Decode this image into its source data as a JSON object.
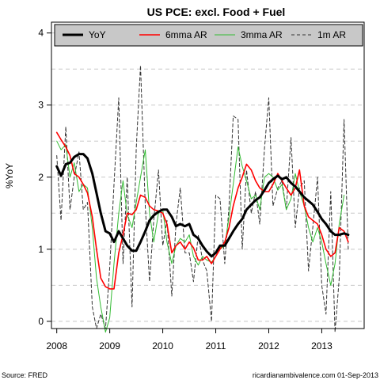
{
  "chart_data": {
    "type": "line",
    "title": "US PCE: excl. Food + Fuel",
    "ylabel": "%YoY",
    "xlabel": "",
    "ylim": [
      -0.1,
      4.15
    ],
    "xlim": [
      2007.9,
      2013.8
    ],
    "yticks": [
      "0",
      "1",
      "2",
      "3",
      "4"
    ],
    "xticks": [
      "2008",
      "2009",
      "2010",
      "2011",
      "2012",
      "2013"
    ],
    "grid": "horizontal dashed at 0.5 steps",
    "legend_position": "top",
    "series": [
      {
        "name": "YoY",
        "color": "#000000",
        "style": "solid-thick",
        "points": [
          [
            2008.0,
            2.15
          ],
          [
            2008.08,
            2.02
          ],
          [
            2008.17,
            2.18
          ],
          [
            2008.25,
            2.2
          ],
          [
            2008.33,
            2.28
          ],
          [
            2008.42,
            2.32
          ],
          [
            2008.5,
            2.32
          ],
          [
            2008.58,
            2.26
          ],
          [
            2008.67,
            2.05
          ],
          [
            2008.75,
            1.78
          ],
          [
            2008.83,
            1.5
          ],
          [
            2008.92,
            1.25
          ],
          [
            2009.0,
            1.22
          ],
          [
            2009.08,
            1.1
          ],
          [
            2009.17,
            1.25
          ],
          [
            2009.25,
            1.15
          ],
          [
            2009.33,
            1.05
          ],
          [
            2009.42,
            0.98
          ],
          [
            2009.5,
            0.98
          ],
          [
            2009.58,
            1.1
          ],
          [
            2009.67,
            1.25
          ],
          [
            2009.75,
            1.4
          ],
          [
            2009.83,
            1.47
          ],
          [
            2009.92,
            1.52
          ],
          [
            2010.0,
            1.55
          ],
          [
            2010.08,
            1.55
          ],
          [
            2010.17,
            1.45
          ],
          [
            2010.25,
            1.32
          ],
          [
            2010.33,
            1.35
          ],
          [
            2010.42,
            1.32
          ],
          [
            2010.5,
            1.35
          ],
          [
            2010.58,
            1.2
          ],
          [
            2010.67,
            1.15
          ],
          [
            2010.75,
            1.05
          ],
          [
            2010.83,
            0.97
          ],
          [
            2010.92,
            0.9
          ],
          [
            2011.0,
            0.95
          ],
          [
            2011.08,
            1.05
          ],
          [
            2011.17,
            1.05
          ],
          [
            2011.25,
            1.15
          ],
          [
            2011.33,
            1.25
          ],
          [
            2011.42,
            1.35
          ],
          [
            2011.5,
            1.42
          ],
          [
            2011.58,
            1.55
          ],
          [
            2011.67,
            1.62
          ],
          [
            2011.75,
            1.68
          ],
          [
            2011.83,
            1.72
          ],
          [
            2011.92,
            1.82
          ],
          [
            2012.0,
            1.92
          ],
          [
            2012.08,
            1.97
          ],
          [
            2012.17,
            2.02
          ],
          [
            2012.25,
            1.97
          ],
          [
            2012.33,
            2.0
          ],
          [
            2012.42,
            1.92
          ],
          [
            2012.5,
            1.87
          ],
          [
            2012.58,
            1.8
          ],
          [
            2012.67,
            1.72
          ],
          [
            2012.75,
            1.67
          ],
          [
            2012.83,
            1.62
          ],
          [
            2012.92,
            1.52
          ],
          [
            2013.0,
            1.42
          ],
          [
            2013.08,
            1.35
          ],
          [
            2013.17,
            1.25
          ],
          [
            2013.25,
            1.2
          ],
          [
            2013.33,
            1.2
          ],
          [
            2013.42,
            1.22
          ],
          [
            2013.5,
            1.2
          ]
        ]
      },
      {
        "name": "6mma AR",
        "color": "#ff0000",
        "style": "solid",
        "points": [
          [
            2008.0,
            2.62
          ],
          [
            2008.08,
            2.52
          ],
          [
            2008.17,
            2.42
          ],
          [
            2008.25,
            2.3
          ],
          [
            2008.33,
            2.05
          ],
          [
            2008.42,
            2.0
          ],
          [
            2008.5,
            1.9
          ],
          [
            2008.58,
            1.78
          ],
          [
            2008.67,
            1.45
          ],
          [
            2008.75,
            1.0
          ],
          [
            2008.83,
            0.6
          ],
          [
            2008.92,
            0.48
          ],
          [
            2009.0,
            0.45
          ],
          [
            2009.08,
            0.45
          ],
          [
            2009.17,
            0.95
          ],
          [
            2009.25,
            1.2
          ],
          [
            2009.33,
            1.5
          ],
          [
            2009.42,
            1.48
          ],
          [
            2009.5,
            1.55
          ],
          [
            2009.58,
            1.75
          ],
          [
            2009.67,
            1.72
          ],
          [
            2009.75,
            1.6
          ],
          [
            2009.83,
            1.55
          ],
          [
            2009.92,
            1.53
          ],
          [
            2010.0,
            1.5
          ],
          [
            2010.08,
            1.35
          ],
          [
            2010.17,
            0.95
          ],
          [
            2010.25,
            1.05
          ],
          [
            2010.33,
            1.1
          ],
          [
            2010.42,
            1.0
          ],
          [
            2010.5,
            1.1
          ],
          [
            2010.58,
            1.02
          ],
          [
            2010.67,
            0.85
          ],
          [
            2010.75,
            0.85
          ],
          [
            2010.83,
            0.9
          ],
          [
            2010.92,
            0.8
          ],
          [
            2011.0,
            0.9
          ],
          [
            2011.08,
            1.0
          ],
          [
            2011.17,
            1.1
          ],
          [
            2011.25,
            1.3
          ],
          [
            2011.33,
            1.6
          ],
          [
            2011.42,
            1.85
          ],
          [
            2011.5,
            2.0
          ],
          [
            2011.58,
            2.18
          ],
          [
            2011.67,
            2.1
          ],
          [
            2011.75,
            1.95
          ],
          [
            2011.83,
            1.85
          ],
          [
            2011.92,
            1.8
          ],
          [
            2012.0,
            1.8
          ],
          [
            2012.08,
            1.9
          ],
          [
            2012.17,
            2.05
          ],
          [
            2012.25,
            1.95
          ],
          [
            2012.33,
            1.85
          ],
          [
            2012.42,
            1.75
          ],
          [
            2012.5,
            1.85
          ],
          [
            2012.58,
            2.1
          ],
          [
            2012.67,
            1.6
          ],
          [
            2012.75,
            1.45
          ],
          [
            2012.83,
            1.4
          ],
          [
            2012.92,
            1.35
          ],
          [
            2013.0,
            1.2
          ],
          [
            2013.08,
            1.0
          ],
          [
            2013.17,
            0.9
          ],
          [
            2013.25,
            0.95
          ],
          [
            2013.33,
            1.3
          ],
          [
            2013.42,
            1.25
          ],
          [
            2013.5,
            1.1
          ]
        ]
      },
      {
        "name": "3mma AR",
        "color": "#33bb33",
        "style": "solid-thin",
        "points": [
          [
            2008.0,
            2.5
          ],
          [
            2008.08,
            2.38
          ],
          [
            2008.17,
            2.45
          ],
          [
            2008.25,
            2.0
          ],
          [
            2008.33,
            2.2
          ],
          [
            2008.42,
            1.8
          ],
          [
            2008.5,
            1.9
          ],
          [
            2008.58,
            1.85
          ],
          [
            2008.67,
            1.3
          ],
          [
            2008.75,
            0.6
          ],
          [
            2008.83,
            0.2
          ],
          [
            2008.92,
            -0.15
          ],
          [
            2009.0,
            0.05
          ],
          [
            2009.08,
            0.8
          ],
          [
            2009.17,
            1.5
          ],
          [
            2009.25,
            1.95
          ],
          [
            2009.33,
            1.48
          ],
          [
            2009.42,
            1.3
          ],
          [
            2009.5,
            1.65
          ],
          [
            2009.58,
            2.0
          ],
          [
            2009.67,
            2.38
          ],
          [
            2009.75,
            1.5
          ],
          [
            2009.83,
            1.1
          ],
          [
            2009.92,
            1.5
          ],
          [
            2010.0,
            1.55
          ],
          [
            2010.08,
            1.1
          ],
          [
            2010.17,
            0.8
          ],
          [
            2010.25,
            1.05
          ],
          [
            2010.33,
            1.15
          ],
          [
            2010.42,
            1.1
          ],
          [
            2010.5,
            1.2
          ],
          [
            2010.58,
            0.9
          ],
          [
            2010.67,
            0.78
          ],
          [
            2010.75,
            0.9
          ],
          [
            2010.83,
            0.85
          ],
          [
            2010.92,
            0.82
          ],
          [
            2011.0,
            0.9
          ],
          [
            2011.08,
            1.0
          ],
          [
            2011.17,
            1.05
          ],
          [
            2011.25,
            1.45
          ],
          [
            2011.33,
            1.9
          ],
          [
            2011.42,
            2.42
          ],
          [
            2011.5,
            2.15
          ],
          [
            2011.58,
            1.95
          ],
          [
            2011.67,
            1.7
          ],
          [
            2011.75,
            1.75
          ],
          [
            2011.83,
            1.55
          ],
          [
            2011.92,
            2.0
          ],
          [
            2012.0,
            2.05
          ],
          [
            2012.08,
            2.0
          ],
          [
            2012.17,
            1.82
          ],
          [
            2012.25,
            1.9
          ],
          [
            2012.33,
            1.55
          ],
          [
            2012.42,
            1.7
          ],
          [
            2012.5,
            2.05
          ],
          [
            2012.58,
            1.8
          ],
          [
            2012.67,
            1.6
          ],
          [
            2012.75,
            1.3
          ],
          [
            2012.83,
            1.1
          ],
          [
            2012.92,
            1.3
          ],
          [
            2013.0,
            1.1
          ],
          [
            2013.08,
            0.8
          ],
          [
            2013.17,
            0.5
          ],
          [
            2013.25,
            0.8
          ],
          [
            2013.33,
            1.35
          ],
          [
            2013.42,
            1.75
          ]
        ]
      },
      {
        "name": "1m AR",
        "color": "#333333",
        "style": "dashed",
        "points": [
          [
            2008.0,
            2.3
          ],
          [
            2008.08,
            1.4
          ],
          [
            2008.17,
            2.7
          ],
          [
            2008.25,
            1.55
          ],
          [
            2008.33,
            2.0
          ],
          [
            2008.42,
            2.35
          ],
          [
            2008.5,
            1.55
          ],
          [
            2008.58,
            1.65
          ],
          [
            2008.67,
            0.2
          ],
          [
            2008.75,
            -0.1
          ],
          [
            2008.83,
            0.1
          ],
          [
            2008.92,
            -0.1
          ],
          [
            2009.0,
            0.75
          ],
          [
            2009.08,
            1.9
          ],
          [
            2009.17,
            3.1
          ],
          [
            2009.25,
            0.8
          ],
          [
            2009.33,
            2.0
          ],
          [
            2009.42,
            0.2
          ],
          [
            2009.5,
            2.4
          ],
          [
            2009.58,
            3.55
          ],
          [
            2009.67,
            1.6
          ],
          [
            2009.75,
            0.55
          ],
          [
            2009.83,
            1.4
          ],
          [
            2009.92,
            2.1
          ],
          [
            2010.0,
            1.05
          ],
          [
            2010.08,
            1.4
          ],
          [
            2010.17,
            0.35
          ],
          [
            2010.25,
            1.35
          ],
          [
            2010.33,
            1.85
          ],
          [
            2010.42,
            0.95
          ],
          [
            2010.5,
            0.95
          ],
          [
            2010.58,
            0.55
          ],
          [
            2010.67,
            1.2
          ],
          [
            2010.75,
            0.85
          ],
          [
            2010.83,
            0.7
          ],
          [
            2010.92,
            0.0
          ],
          [
            2011.0,
            1.75
          ],
          [
            2011.08,
            1.7
          ],
          [
            2011.17,
            0.8
          ],
          [
            2011.25,
            1.6
          ],
          [
            2011.33,
            2.85
          ],
          [
            2011.42,
            2.8
          ],
          [
            2011.5,
            1.0
          ],
          [
            2011.58,
            2.1
          ],
          [
            2011.67,
            1.5
          ],
          [
            2011.75,
            1.8
          ],
          [
            2011.83,
            1.35
          ],
          [
            2011.92,
            2.4
          ],
          [
            2012.0,
            3.1
          ],
          [
            2012.08,
            1.6
          ],
          [
            2012.17,
            1.85
          ],
          [
            2012.25,
            1.95
          ],
          [
            2012.33,
            1.55
          ],
          [
            2012.42,
            2.55
          ],
          [
            2012.5,
            1.3
          ],
          [
            2012.58,
            1.85
          ],
          [
            2012.67,
            1.95
          ],
          [
            2012.75,
            0.7
          ],
          [
            2012.83,
            1.3
          ],
          [
            2012.92,
            2.0
          ],
          [
            2013.0,
            0.5
          ],
          [
            2013.08,
            0.1
          ],
          [
            2013.17,
            1.8
          ],
          [
            2013.25,
            -0.15
          ],
          [
            2013.33,
            0.6
          ],
          [
            2013.42,
            2.8
          ],
          [
            2013.5,
            1.0
          ]
        ]
      }
    ]
  },
  "footer": {
    "source": "Source: FRED",
    "credit": "ricardianambivalence.com   01-Sep-2013"
  }
}
